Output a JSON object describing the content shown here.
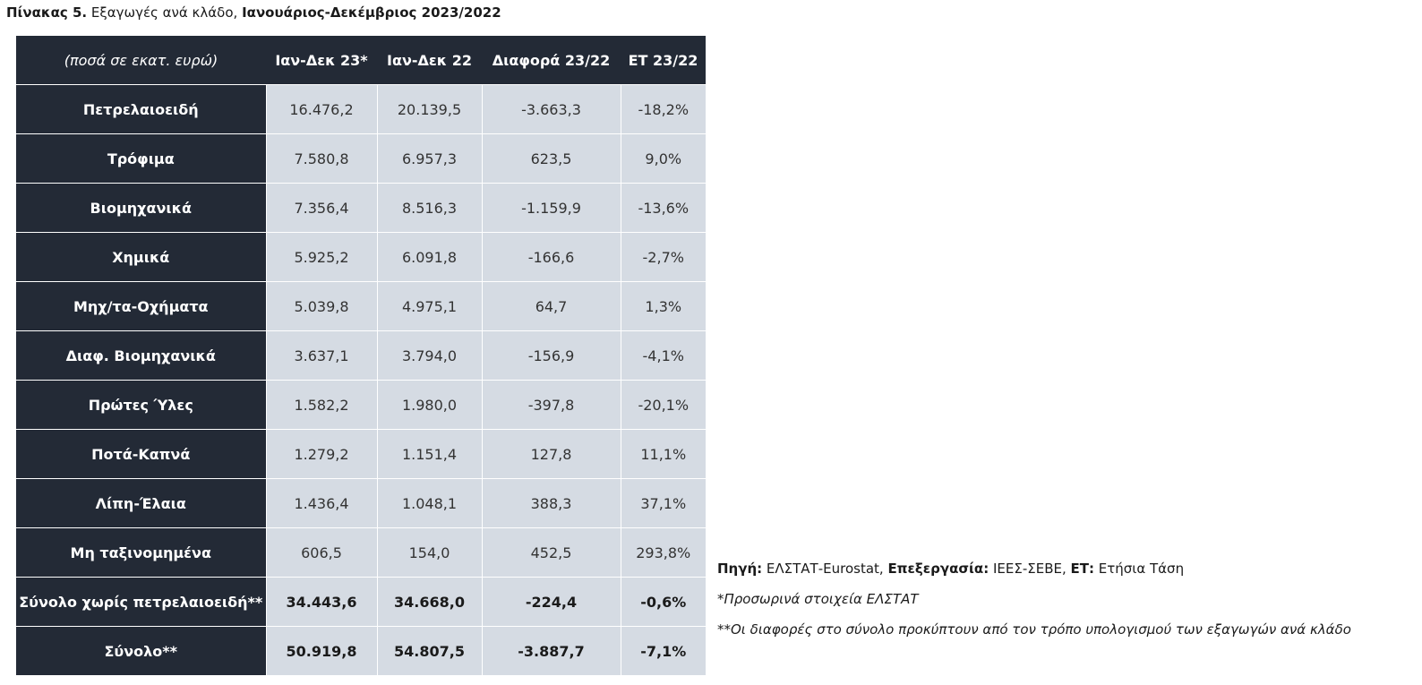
{
  "caption": {
    "label": "Πίνακας 5.",
    "text": " Εξαγωγές ανά κλάδο, ",
    "period": "Ιανουάριος-Δεκέμβριος 2023/2022"
  },
  "table": {
    "columns": [
      "(ποσά σε εκατ. ευρώ)",
      "Ιαν-Δεκ 23*",
      "Ιαν-Δεκ 22",
      "Διαφορά 23/22",
      "ΕΤ 23/22"
    ],
    "rows": [
      {
        "label": "Πετρελαιοειδή",
        "values": [
          "16.476,2",
          "20.139,5",
          "-3.663,3",
          "-18,2%"
        ],
        "bold": false
      },
      {
        "label": "Τρόφιμα",
        "values": [
          "7.580,8",
          "6.957,3",
          "623,5",
          "9,0%"
        ],
        "bold": false
      },
      {
        "label": "Βιομηχανικά",
        "values": [
          "7.356,4",
          "8.516,3",
          "-1.159,9",
          "-13,6%"
        ],
        "bold": false
      },
      {
        "label": "Χημικά",
        "values": [
          "5.925,2",
          "6.091,8",
          "-166,6",
          "-2,7%"
        ],
        "bold": false
      },
      {
        "label": "Μηχ/τα-Οχήματα",
        "values": [
          "5.039,8",
          "4.975,1",
          "64,7",
          "1,3%"
        ],
        "bold": false
      },
      {
        "label": "Διαφ. Βιομηχανικά",
        "values": [
          "3.637,1",
          "3.794,0",
          "-156,9",
          "-4,1%"
        ],
        "bold": false
      },
      {
        "label": "Πρώτες Ύλες",
        "values": [
          "1.582,2",
          "1.980,0",
          "-397,8",
          "-20,1%"
        ],
        "bold": false
      },
      {
        "label": "Ποτά-Καπνά",
        "values": [
          "1.279,2",
          "1.151,4",
          "127,8",
          "11,1%"
        ],
        "bold": false
      },
      {
        "label": "Λίπη-Έλαια",
        "values": [
          "1.436,4",
          "1.048,1",
          "388,3",
          "37,1%"
        ],
        "bold": false
      },
      {
        "label": "Μη ταξινομημένα",
        "values": [
          "606,5",
          "154,0",
          "452,5",
          "293,8%"
        ],
        "bold": false
      },
      {
        "label": "Σύνολο χωρίς πετρελαιοειδή**",
        "values": [
          "34.443,6",
          "34.668,0",
          "-224,4",
          "-0,6%"
        ],
        "bold": true
      },
      {
        "label": "Σύνολο**",
        "values": [
          "50.919,8",
          "54.807,5",
          "-3.887,7",
          "-7,1%"
        ],
        "bold": true
      }
    ]
  },
  "notes": {
    "source_label": "Πηγή:",
    "source_value": " ΕΛΣΤΑΤ-Eurostat, ",
    "processing_label": "Επεξεργασία:",
    "processing_value": " ΙΕΕΣ-ΣΕΒΕ, ",
    "et_label": "ΕΤ:",
    "et_value": " Ετήσια Τάση",
    "provisional": "*Προσωρινά στοιχεία ΕΛΣΤΑΤ",
    "differences": "**Οι διαφορές στο σύνολο προκύπτουν από τον τρόπο υπολογισμού των εξαγωγών ανά κλάδο"
  },
  "colors": {
    "header_bg": "#232a36",
    "value_bg": "#d5dbe3"
  }
}
